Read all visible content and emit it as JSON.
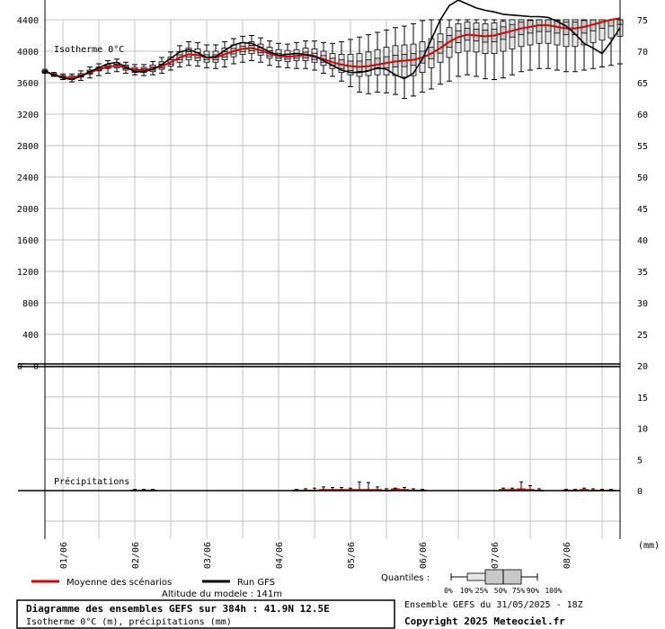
{
  "chart_data": [
    {
      "type": "boxplot",
      "name": "isotherm",
      "label": "Isotherme 0°C",
      "left_ticks": [
        4400,
        4000,
        3600,
        3200,
        2800,
        2400,
        2000,
        1600,
        1200,
        800,
        400,
        0
      ],
      "right_ticks": [
        75,
        70,
        65,
        60,
        55,
        50,
        45,
        40,
        35,
        30,
        25,
        20
      ],
      "ylim": [
        0,
        4400
      ],
      "x_dates": [
        "01/06",
        "02/06",
        "03/06",
        "04/06",
        "05/06",
        "06/06",
        "07/06",
        "08/06"
      ],
      "xlim_hours": [
        0,
        384
      ],
      "x_hours": [
        0,
        6,
        12,
        18,
        24,
        30,
        36,
        42,
        48,
        54,
        60,
        66,
        72,
        78,
        84,
        90,
        96,
        102,
        108,
        114,
        120,
        126,
        132,
        138,
        144,
        150,
        156,
        162,
        168,
        174,
        180,
        186,
        192,
        198,
        204,
        210,
        216,
        222,
        228,
        234,
        240,
        246,
        252,
        258,
        264,
        270,
        276,
        282,
        288,
        294,
        300,
        306,
        312,
        318,
        324,
        330,
        336,
        342,
        348,
        354,
        360,
        366,
        372,
        378,
        384
      ],
      "series": [
        {
          "name": "Moyenne des scénarios",
          "color": "#dd0000",
          "values": [
            3740,
            3700,
            3670,
            3660,
            3690,
            3730,
            3770,
            3800,
            3820,
            3790,
            3760,
            3760,
            3780,
            3810,
            3860,
            3920,
            3960,
            3950,
            3920,
            3920,
            3960,
            4000,
            4030,
            4040,
            4010,
            3970,
            3940,
            3930,
            3940,
            3950,
            3930,
            3900,
            3860,
            3830,
            3810,
            3800,
            3810,
            3830,
            3850,
            3870,
            3880,
            3890,
            3920,
            3970,
            4040,
            4120,
            4180,
            4210,
            4200,
            4190,
            4200,
            4230,
            4260,
            4290,
            4310,
            4330,
            4330,
            4310,
            4290,
            4290,
            4310,
            4340,
            4370,
            4400,
            4420
          ]
        },
        {
          "name": "Run GFS",
          "color": "#000000",
          "values": [
            3750,
            3700,
            3660,
            3640,
            3680,
            3740,
            3790,
            3840,
            3860,
            3800,
            3740,
            3740,
            3770,
            3830,
            3910,
            3990,
            4020,
            3980,
            3920,
            3930,
            4010,
            4080,
            4110,
            4100,
            4050,
            3990,
            3950,
            3960,
            3970,
            3960,
            3940,
            3880,
            3820,
            3760,
            3730,
            3730,
            3750,
            3790,
            3770,
            3700,
            3650,
            3720,
            3900,
            4150,
            4400,
            4580,
            4650,
            4600,
            4550,
            4520,
            4500,
            4470,
            4460,
            4450,
            4440,
            4440,
            4430,
            4380,
            4320,
            4220,
            4100,
            4040,
            3970,
            4120,
            4300
          ]
        }
      ],
      "boxes": {
        "hours": [
          0,
          6,
          12,
          18,
          24,
          30,
          36,
          42,
          48,
          54,
          60,
          66,
          72,
          78,
          84,
          90,
          96,
          102,
          108,
          114,
          120,
          126,
          132,
          138,
          144,
          150,
          156,
          162,
          168,
          174,
          180,
          186,
          192,
          198,
          204,
          210,
          216,
          222,
          228,
          234,
          240,
          246,
          252,
          258,
          264,
          270,
          276,
          282,
          288,
          294,
          300,
          306,
          312,
          318,
          324,
          330,
          336,
          342,
          348,
          354,
          360,
          366,
          372,
          378,
          384
        ],
        "q0": [
          3720,
          3680,
          3640,
          3610,
          3630,
          3660,
          3690,
          3720,
          3740,
          3720,
          3700,
          3690,
          3700,
          3720,
          3760,
          3800,
          3820,
          3810,
          3790,
          3780,
          3800,
          3840,
          3860,
          3880,
          3860,
          3820,
          3800,
          3790,
          3780,
          3780,
          3760,
          3720,
          3680,
          3620,
          3550,
          3480,
          3460,
          3480,
          3470,
          3450,
          3400,
          3430,
          3480,
          3520,
          3580,
          3620,
          3680,
          3700,
          3680,
          3650,
          3640,
          3660,
          3700,
          3740,
          3760,
          3780,
          3780,
          3760,
          3740,
          3740,
          3760,
          3780,
          3800,
          3820,
          3840
        ],
        "q10": [
          3730,
          3690,
          3660,
          3640,
          3670,
          3710,
          3750,
          3780,
          3790,
          3760,
          3730,
          3730,
          3740,
          3770,
          3810,
          3860,
          3890,
          3880,
          3860,
          3860,
          3890,
          3930,
          3960,
          3970,
          3950,
          3910,
          3880,
          3870,
          3880,
          3880,
          3860,
          3820,
          3780,
          3730,
          3700,
          3680,
          3690,
          3700,
          3700,
          3690,
          3670,
          3690,
          3730,
          3790,
          3860,
          3920,
          3980,
          4000,
          3990,
          3970,
          3970,
          4000,
          4030,
          4060,
          4080,
          4100,
          4100,
          4080,
          4060,
          4060,
          4080,
          4110,
          4140,
          4170,
          4190
        ],
        "q25": [
          3735,
          3695,
          3665,
          3650,
          3680,
          3720,
          3760,
          3790,
          3805,
          3775,
          3745,
          3745,
          3760,
          3790,
          3835,
          3890,
          3925,
          3915,
          3890,
          3890,
          3925,
          3965,
          3995,
          4005,
          3980,
          3940,
          3910,
          3900,
          3910,
          3915,
          3895,
          3860,
          3820,
          3780,
          3755,
          3745,
          3755,
          3775,
          3790,
          3800,
          3805,
          3820,
          3850,
          3905,
          3975,
          4050,
          4110,
          4140,
          4130,
          4115,
          4120,
          4150,
          4180,
          4210,
          4230,
          4250,
          4250,
          4230,
          4210,
          4210,
          4230,
          4260,
          4290,
          4320,
          4340
        ],
        "q50": [
          3740,
          3700,
          3670,
          3660,
          3690,
          3730,
          3770,
          3800,
          3820,
          3790,
          3760,
          3760,
          3780,
          3810,
          3860,
          3920,
          3960,
          3950,
          3920,
          3920,
          3960,
          4000,
          4030,
          4040,
          4010,
          3970,
          3940,
          3930,
          3940,
          3950,
          3930,
          3900,
          3860,
          3830,
          3810,
          3800,
          3810,
          3830,
          3850,
          3870,
          3880,
          3890,
          3920,
          3970,
          4040,
          4120,
          4180,
          4210,
          4200,
          4190,
          4200,
          4230,
          4260,
          4290,
          4310,
          4330,
          4330,
          4310,
          4290,
          4290,
          4310,
          4340,
          4370,
          4400,
          4420
        ],
        "q75": [
          3745,
          3705,
          3680,
          3670,
          3700,
          3745,
          3785,
          3815,
          3835,
          3805,
          3775,
          3775,
          3800,
          3835,
          3890,
          3955,
          3995,
          3985,
          3955,
          3955,
          3995,
          4035,
          4065,
          4075,
          4045,
          4005,
          3975,
          3965,
          3975,
          3990,
          3975,
          3945,
          3910,
          3890,
          3875,
          3875,
          3890,
          3910,
          3930,
          3950,
          3960,
          3970,
          4000,
          4050,
          4120,
          4200,
          4260,
          4290,
          4280,
          4270,
          4280,
          4310,
          4340,
          4370,
          4390,
          4410,
          4410,
          4390,
          4370,
          4370,
          4390,
          4420,
          4450,
          4480,
          4500
        ],
        "q90": [
          3755,
          3715,
          3690,
          3685,
          3715,
          3760,
          3800,
          3835,
          3855,
          3825,
          3795,
          3795,
          3825,
          3865,
          3925,
          3995,
          4040,
          4030,
          4000,
          4000,
          4040,
          4080,
          4110,
          4120,
          4090,
          4050,
          4020,
          4010,
          4020,
          4040,
          4030,
          4000,
          3970,
          3960,
          3960,
          3970,
          3990,
          4020,
          4050,
          4070,
          4080,
          4090,
          4120,
          4160,
          4220,
          4300,
          4350,
          4370,
          4360,
          4350,
          4360,
          4380,
          4410,
          4430,
          4450,
          4460,
          4460,
          4440,
          4420,
          4420,
          4440,
          4460,
          4480,
          4500,
          4520
        ],
        "q100": [
          3770,
          3730,
          3710,
          3710,
          3750,
          3800,
          3840,
          3880,
          3900,
          3860,
          3830,
          3830,
          3870,
          3920,
          3990,
          4070,
          4120,
          4110,
          4080,
          4080,
          4120,
          4160,
          4190,
          4200,
          4170,
          4130,
          4100,
          4090,
          4110,
          4130,
          4130,
          4110,
          4100,
          4120,
          4150,
          4180,
          4210,
          4240,
          4270,
          4300,
          4320,
          4350,
          4390,
          4430,
          4470,
          4500,
          4520,
          4520,
          4520,
          4520,
          4520,
          4520,
          4520,
          4520,
          4520,
          4520,
          4520,
          4520,
          4520,
          4520,
          4520,
          4520,
          4520,
          4520,
          4520
        ]
      }
    },
    {
      "type": "bar",
      "name": "precipitation",
      "label": "Précipitations",
      "right_ticks": [
        20,
        15,
        10,
        5,
        0
      ],
      "ylim": [
        0,
        20
      ],
      "unit": "(mm)",
      "x_hours": [
        60,
        66,
        72,
        168,
        174,
        180,
        186,
        192,
        198,
        204,
        210,
        216,
        222,
        228,
        234,
        240,
        246,
        252,
        306,
        312,
        318,
        324,
        330,
        348,
        354,
        360,
        366,
        372,
        378
      ],
      "values": [
        0.1,
        0.1,
        0.1,
        0.1,
        0.1,
        0.1,
        0.2,
        0.2,
        0.2,
        0.2,
        0.2,
        0.2,
        0.2,
        0.1,
        0.3,
        0.2,
        0.1,
        0.1,
        0.2,
        0.2,
        0.3,
        0.2,
        0.1,
        0.1,
        0.1,
        0.2,
        0.1,
        0.1,
        0.1
      ],
      "max": [
        0.2,
        0.2,
        0.2,
        0.2,
        0.3,
        0.4,
        0.6,
        0.5,
        0.5,
        0.4,
        1.4,
        1.3,
        0.6,
        0.3,
        0.4,
        0.5,
        0.3,
        0.2,
        0.4,
        0.4,
        1.4,
        0.8,
        0.3,
        0.2,
        0.2,
        0.4,
        0.3,
        0.2,
        0.2
      ]
    }
  ],
  "legend": {
    "mean_label": "Moyenne des scénarios",
    "gfs_label": "Run GFS",
    "quantiles_label": "Quantiles :",
    "quantile_ticks": [
      "0%",
      "10%",
      "25%",
      "50%",
      "75%",
      "90%",
      "100%"
    ]
  },
  "footer": {
    "altitude": "Altitude du modele : 141m",
    "title": "Diagramme des ensembles GEFS sur 384h : 41.9N 12.5E",
    "subtitle": "Isotherme 0°C (m), précipitations (mm)",
    "ensemble": "Ensemble GEFS du 31/05/2025 - 18Z",
    "copyright": "Copyright 2025 Meteociel.fr"
  },
  "colors": {
    "mean": "#dd0000",
    "gfs": "#000000",
    "box_fill": "#c8c8c8",
    "grid": "#c0c0c0"
  }
}
